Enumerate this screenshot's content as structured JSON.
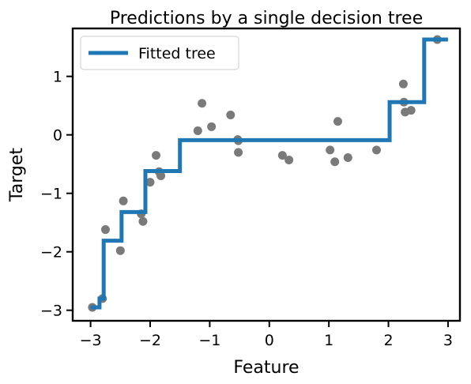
{
  "chart_data": {
    "type": "scatter",
    "title": "Predictions by a single decision tree",
    "xlabel": "Feature",
    "ylabel": "Target",
    "xlim": [
      -3.3,
      3.2
    ],
    "ylim": [
      -3.18,
      1.82
    ],
    "xticks": [
      -3,
      -2,
      -1,
      0,
      1,
      2,
      3
    ],
    "xtick_labels": [
      "−3",
      "−2",
      "−1",
      "0",
      "1",
      "2",
      "3"
    ],
    "yticks": [
      -3,
      -2,
      -1,
      0,
      1
    ],
    "ytick_labels": [
      "−3",
      "−2",
      "−1",
      "0",
      "1"
    ],
    "grid": false,
    "legend": {
      "position": "top-left",
      "entries": [
        "Fitted tree"
      ]
    },
    "colors": {
      "points": "#7a7a7a",
      "line": "#1f77b4"
    },
    "points": {
      "x": [
        -2.97,
        -2.8,
        -2.75,
        -2.5,
        -2.45,
        -2.15,
        -2.12,
        -2.0,
        -1.9,
        -1.85,
        -1.82,
        -1.2,
        -1.13,
        -0.97,
        -0.65,
        -0.53,
        -0.52,
        -0.52,
        0.22,
        0.33,
        1.02,
        1.1,
        1.15,
        1.32,
        1.8,
        2.25,
        2.26,
        2.28,
        2.38,
        2.82
      ],
      "y": [
        -2.95,
        -2.8,
        -1.62,
        -1.98,
        -1.13,
        -1.35,
        -1.48,
        -0.81,
        -0.35,
        -0.63,
        -0.7,
        0.07,
        0.54,
        0.14,
        0.34,
        -0.08,
        -0.3,
        -0.1,
        -0.35,
        -0.43,
        -0.26,
        -0.46,
        0.23,
        -0.39,
        -0.26,
        0.87,
        0.56,
        0.39,
        0.42,
        1.63
      ]
    },
    "series": [
      {
        "name": "Fitted tree",
        "type": "step",
        "x": [
          -3.0,
          -2.85,
          -2.85,
          -2.78,
          -2.78,
          -2.48,
          -2.48,
          -2.08,
          -2.08,
          -1.5,
          -1.5,
          2.02,
          2.02,
          2.6,
          2.6,
          3.0
        ],
        "y": [
          -2.95,
          -2.95,
          -2.8,
          -2.8,
          -1.81,
          -1.81,
          -1.32,
          -1.32,
          -0.62,
          -0.62,
          -0.09,
          -0.09,
          0.56,
          0.56,
          1.63,
          1.63
        ]
      }
    ]
  }
}
